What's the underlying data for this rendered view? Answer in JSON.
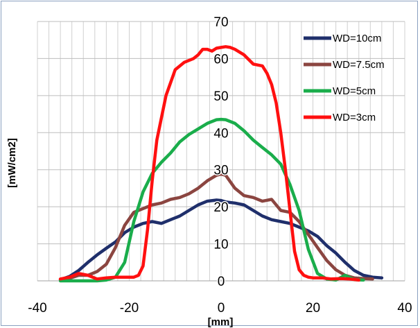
{
  "chart_data": {
    "type": "line",
    "title": "",
    "xlabel": "[mm]",
    "ylabel": "[mW/cm2]",
    "xlim": [
      -40,
      40
    ],
    "ylim": [
      0,
      70
    ],
    "x_ticks": [
      "-40",
      "-20",
      "0",
      "20",
      "40"
    ],
    "y_ticks": [
      "0",
      "10",
      "20",
      "30",
      "40",
      "50",
      "60",
      "70"
    ],
    "grid": "vertical minor gridlines every 2.5 mm, horizontal gridlines every 10",
    "legend_position": "top-right",
    "series": [
      {
        "name": "WD=10cm",
        "color": "#1f2f6b",
        "x": [
          -35,
          -33,
          -31,
          -29,
          -27,
          -25,
          -23,
          -21,
          -19,
          -17,
          -15,
          -13,
          -11,
          -9,
          -7,
          -5,
          -3,
          -1,
          0,
          1,
          3,
          5,
          7,
          9,
          11,
          13,
          15,
          17,
          19,
          21,
          23,
          25,
          27,
          29,
          31,
          33,
          35
        ],
        "y": [
          0.3,
          1.2,
          2.8,
          5,
          7,
          8.8,
          10.5,
          13,
          14.5,
          15.5,
          16,
          15.5,
          16.5,
          17.5,
          19,
          20.5,
          21.5,
          21.8,
          21.7,
          21.3,
          21,
          20.5,
          19,
          17.5,
          16.5,
          16,
          15.5,
          14.5,
          13.5,
          12,
          9.5,
          7.5,
          5,
          2.8,
          1.5,
          1,
          0.8
        ]
      },
      {
        "name": "WD=7.5cm",
        "color": "#8b4540",
        "x": [
          -35,
          -33,
          -31,
          -29,
          -27,
          -25,
          -23,
          -21,
          -19,
          -17,
          -15,
          -13,
          -11,
          -9,
          -7,
          -5,
          -3,
          -1,
          0,
          1,
          3,
          5,
          7,
          9,
          11,
          13,
          15,
          17,
          19,
          21,
          23,
          25,
          27,
          29,
          31,
          33
        ],
        "y": [
          0.3,
          0.7,
          1.5,
          1.5,
          2.5,
          4.5,
          9,
          15,
          18.5,
          19.5,
          20.5,
          21,
          22,
          22.5,
          23.5,
          25,
          27,
          28.5,
          28.8,
          28.5,
          25,
          23,
          22.5,
          21.5,
          22,
          19,
          18.5,
          16,
          12.5,
          9,
          5.5,
          3,
          1.5,
          0.8,
          0.6,
          0.5
        ]
      },
      {
        "name": "WD=5cm",
        "color": "#1aad4b",
        "x": [
          -35,
          -31,
          -27,
          -25,
          -23,
          -21,
          -19,
          -17,
          -15,
          -13,
          -11,
          -9,
          -7,
          -5,
          -3,
          -1,
          0,
          1,
          3,
          5,
          7,
          9,
          11,
          13,
          15,
          17,
          19,
          21,
          23,
          25,
          27,
          29,
          31
        ],
        "y": [
          0,
          0,
          0,
          0.2,
          1,
          5,
          16,
          24,
          29,
          32,
          34.5,
          37.5,
          39.5,
          41,
          42.5,
          43.5,
          43.6,
          43.5,
          42.5,
          40.5,
          38,
          36,
          34,
          31.5,
          26,
          19,
          8.5,
          2,
          0.5,
          0.2,
          1.5,
          0.3,
          0.2
        ]
      },
      {
        "name": "WD=3cm",
        "color": "#ff1010",
        "x": [
          -35,
          -33,
          -31,
          -29,
          -27,
          -25,
          -23,
          -21,
          -19,
          -18,
          -17,
          -16,
          -15,
          -14,
          -12,
          -10,
          -8,
          -6,
          -5,
          -4,
          -3,
          -2,
          -1,
          0,
          1,
          2,
          3,
          5,
          7,
          9,
          10,
          11,
          12,
          13,
          14,
          15,
          16,
          17,
          18,
          19,
          20,
          22,
          24,
          26,
          28,
          30
        ],
        "y": [
          0.5,
          1,
          2,
          1.5,
          0.5,
          0.8,
          1,
          1,
          1,
          1.5,
          4,
          14,
          27,
          38,
          50,
          57,
          59,
          60,
          61,
          62.5,
          62.5,
          62,
          62.8,
          63,
          63.2,
          63,
          62.5,
          61,
          58.5,
          58,
          56,
          53,
          48,
          40,
          30,
          19,
          8,
          3,
          1.5,
          1,
          0.8,
          0.8,
          0.5,
          0.6,
          0.5,
          0.2
        ]
      }
    ]
  }
}
